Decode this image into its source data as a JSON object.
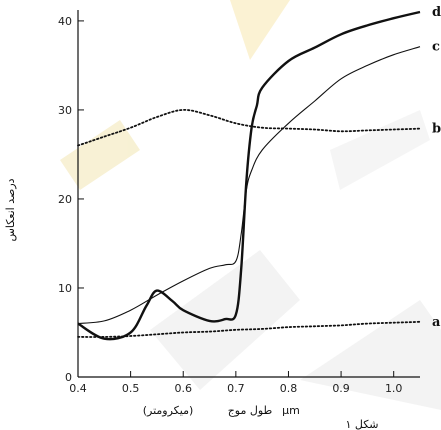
{
  "chart_data": {
    "type": "line",
    "ylabel": "درصد انعکاس",
    "xlabel_unit": "µm",
    "xlabel": "طول موج",
    "xlabel_note": "(میکرومتر)",
    "caption": "شکل ۱",
    "x_ticks": [
      "0.4",
      "0.5",
      "0.6",
      "0.7",
      "0.8",
      "0.9",
      "1.0"
    ],
    "y_ticks": [
      "0",
      "10",
      "20",
      "30",
      "40"
    ],
    "xlim": [
      0.4,
      1.05
    ],
    "ylim": [
      0,
      41
    ],
    "series": [
      {
        "name": "a",
        "style": "dotted",
        "x": [
          0.4,
          0.45,
          0.5,
          0.55,
          0.6,
          0.65,
          0.7,
          0.75,
          0.8,
          0.85,
          0.9,
          0.95,
          1.0,
          1.05
        ],
        "y": [
          4.5,
          4.5,
          4.6,
          4.8,
          5.0,
          5.1,
          5.3,
          5.4,
          5.6,
          5.7,
          5.8,
          6.0,
          6.1,
          6.2
        ]
      },
      {
        "name": "b",
        "style": "dotted",
        "x": [
          0.4,
          0.45,
          0.5,
          0.55,
          0.6,
          0.65,
          0.7,
          0.75,
          0.8,
          0.85,
          0.9,
          0.95,
          1.0,
          1.05
        ],
        "y": [
          26.0,
          27.0,
          28.0,
          29.2,
          30.0,
          29.4,
          28.5,
          28.0,
          27.9,
          27.8,
          27.6,
          27.7,
          27.8,
          27.9
        ]
      },
      {
        "name": "c",
        "style": "solid-thin",
        "x": [
          0.4,
          0.45,
          0.5,
          0.55,
          0.6,
          0.65,
          0.68,
          0.7,
          0.71,
          0.72,
          0.73,
          0.75,
          0.8,
          0.85,
          0.9,
          0.95,
          1.0,
          1.05
        ],
        "y": [
          6.0,
          6.3,
          7.5,
          9.2,
          10.8,
          12.2,
          12.6,
          13.0,
          16.0,
          21.0,
          23.2,
          25.5,
          28.5,
          31.0,
          33.5,
          35.0,
          36.2,
          37.1
        ]
      },
      {
        "name": "d",
        "style": "solid-thick",
        "x": [
          0.4,
          0.45,
          0.5,
          0.53,
          0.55,
          0.58,
          0.6,
          0.65,
          0.68,
          0.7,
          0.71,
          0.72,
          0.73,
          0.74,
          0.75,
          0.8,
          0.85,
          0.9,
          0.95,
          1.0,
          1.05
        ],
        "y": [
          6.0,
          4.3,
          5.0,
          8.0,
          9.7,
          8.5,
          7.5,
          6.3,
          6.5,
          7.0,
          12.0,
          22.0,
          28.0,
          30.5,
          32.5,
          35.5,
          37.0,
          38.5,
          39.5,
          40.3,
          41.0
        ]
      }
    ]
  }
}
